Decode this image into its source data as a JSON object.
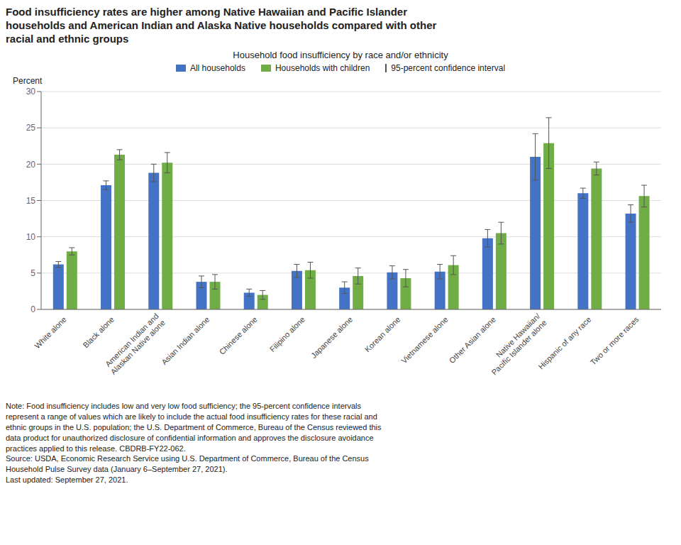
{
  "chart_data": {
    "type": "bar",
    "title": "Food insufficiency rates are higher among Native Hawaiian and Pacific Islander\nhouseholds and American Indian and Alaska Native households compared with other\nracial and ethnic groups",
    "subtitle": "Household food insufficiency by race and/or ethnicity",
    "ylabel": "Percent",
    "categories": [
      "White alone",
      "Black alone",
      "American Indian and\nAlaskan Native alone",
      "Asian Indian alone",
      "Chinese alone",
      "Filipino alone",
      "Japanese alone",
      "Korean alone",
      "Vietnamese alone",
      "Other Asian alone",
      "Native Hawaiian/\nPacific Islander alone",
      "Hispanic of any race",
      "Two or more races"
    ],
    "series": [
      {
        "name": "All households",
        "color": "#4472C4",
        "values": [
          6.2,
          17.1,
          18.8,
          3.8,
          2.3,
          5.3,
          3.0,
          5.1,
          5.2,
          9.8,
          21.0,
          16.0,
          13.2
        ],
        "errors": [
          0.4,
          0.6,
          1.2,
          0.8,
          0.5,
          0.9,
          0.8,
          0.9,
          1.0,
          1.2,
          3.2,
          0.7,
          1.2
        ]
      },
      {
        "name": "Households with children",
        "color": "#70AD47",
        "values": [
          8.0,
          21.3,
          20.2,
          3.8,
          2.0,
          5.4,
          4.6,
          4.3,
          6.1,
          10.5,
          22.9,
          19.4,
          15.6
        ],
        "errors": [
          0.5,
          0.7,
          1.4,
          1.0,
          0.6,
          1.1,
          1.1,
          1.2,
          1.3,
          1.5,
          3.5,
          0.9,
          1.5
        ]
      }
    ],
    "error_bar_label": "95-percent confidence interval",
    "ylim": [
      0,
      30
    ],
    "yticks": [
      0,
      5,
      10,
      15,
      20,
      25,
      30
    ],
    "grid": true,
    "legend": "top",
    "notes": [
      "Note: Food insufficiency includes low and very low food sufficiency; the 95-percent confidence intervals",
      "represent a range of values which are likely to include the actual food insufficiency rates for these racial and",
      "ethnic groups in the U.S. population; the U.S. Department of Commerce, Bureau of the Census reviewed this",
      "data product for unauthorized disclosure of confidential information and approves the disclosure avoidance",
      "practices applied to this release. CBDRB-FY22-062.",
      "Source: USDA, Economic Research Service using U.S. Department of Commerce, Bureau of the Census",
      "Household Pulse Survey data (January 6–September 27, 2021).",
      "Last updated: September 27, 2021."
    ]
  }
}
